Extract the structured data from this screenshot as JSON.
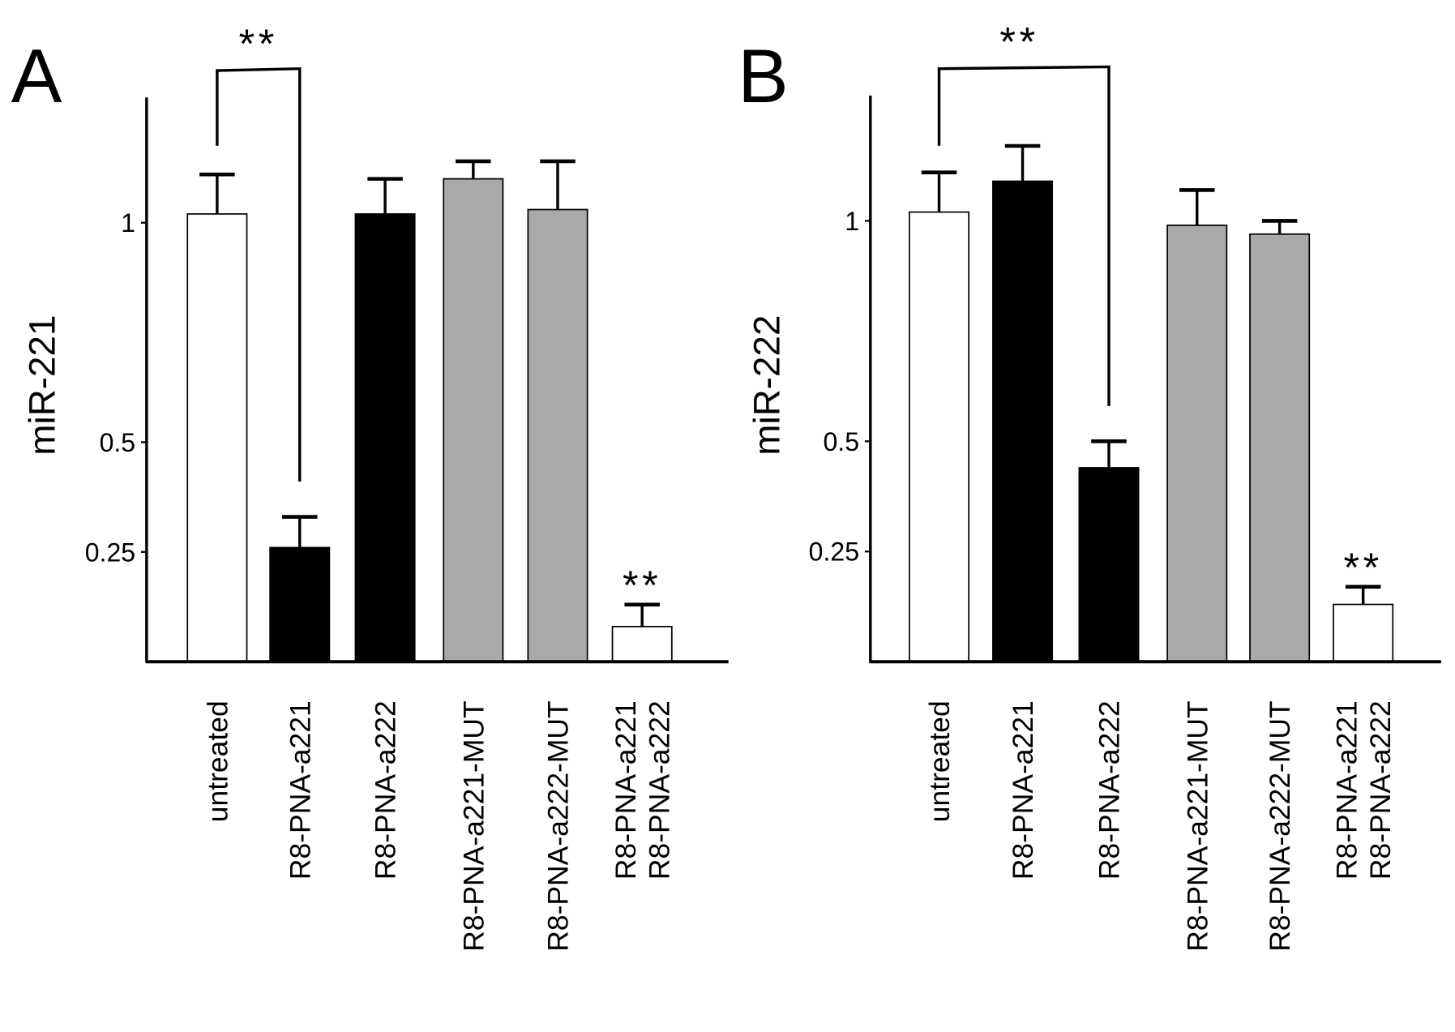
{
  "chart_data": [
    {
      "type": "bar",
      "panel_label": "A",
      "ylabel": "miR-221",
      "xlabel": "",
      "ylim": [
        0,
        1.28
      ],
      "yticks": [
        0.25,
        0.5,
        1
      ],
      "ytick_labels": [
        "0.25",
        "0.5",
        "1"
      ],
      "grid": false,
      "categories": [
        [
          "untreated"
        ],
        [
          "R8-PNA-a221"
        ],
        [
          "R8-PNA-a222"
        ],
        [
          "R8-PNA-a221-MUT"
        ],
        [
          "R8-PNA-a222-MUT"
        ],
        [
          "R8-PNA-a221",
          "R8-PNA-a222"
        ]
      ],
      "values": [
        1.02,
        0.26,
        1.02,
        1.1,
        1.03,
        0.08
      ],
      "error_upper": [
        1.11,
        0.33,
        1.1,
        1.14,
        1.14,
        0.13
      ],
      "bar_colors": [
        "#ffffff",
        "#000000",
        "#000000",
        "#a9a9a9",
        "#a9a9a9",
        "#ffffff"
      ],
      "significance": [
        {
          "type": "bracket",
          "from": 0,
          "to": 1,
          "label": "**"
        },
        {
          "type": "bar",
          "index": 5,
          "label": "**"
        }
      ]
    },
    {
      "type": "bar",
      "panel_label": "B",
      "ylabel": "miR-222",
      "xlabel": "",
      "ylim": [
        0,
        1.28
      ],
      "yticks": [
        0.25,
        0.5,
        1
      ],
      "ytick_labels": [
        "0.25",
        "0.5",
        "1"
      ],
      "grid": false,
      "categories": [
        [
          "untreated"
        ],
        [
          "R8-PNA-a221"
        ],
        [
          "R8-PNA-a222"
        ],
        [
          "R8-PNA-a221-MUT"
        ],
        [
          "R8-PNA-a222-MUT"
        ],
        [
          "R8-PNA-a221",
          "R8-PNA-a222"
        ]
      ],
      "values": [
        1.02,
        1.09,
        0.44,
        0.99,
        0.97,
        0.13
      ],
      "error_upper": [
        1.11,
        1.17,
        0.5,
        1.07,
        1.0,
        0.17
      ],
      "bar_colors": [
        "#ffffff",
        "#000000",
        "#000000",
        "#a9a9a9",
        "#a9a9a9",
        "#ffffff"
      ],
      "significance": [
        {
          "type": "bracket",
          "from": 0,
          "to": 2,
          "label": "**"
        },
        {
          "type": "bar",
          "index": 5,
          "label": "**"
        }
      ]
    }
  ]
}
